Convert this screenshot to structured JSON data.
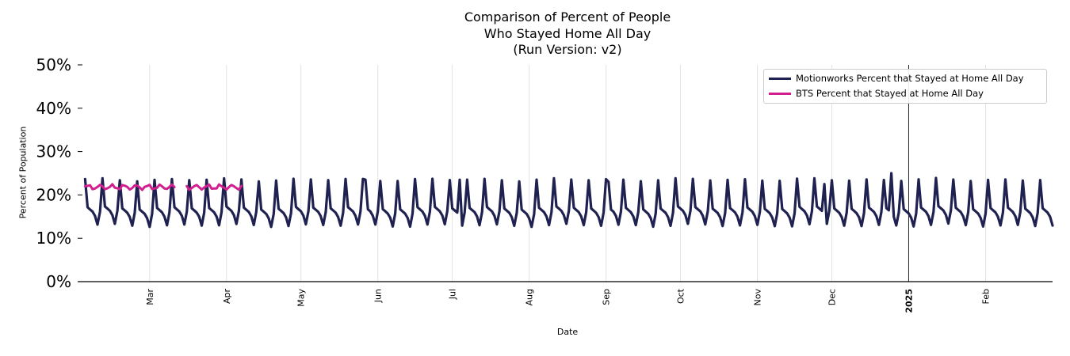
{
  "chart_data": {
    "type": "line",
    "title": [
      "Comparison of Percent of People",
      "Who Stayed Home All Day",
      "(Run Version: v2)"
    ],
    "xlabel": "Date",
    "ylabel": "Percent of Population",
    "ylim": [
      0,
      50
    ],
    "y_ticks": [
      0,
      10,
      20,
      30,
      40,
      50
    ],
    "y_tick_labels": [
      "0%",
      "10%",
      "20%",
      "30%",
      "40%",
      "50%"
    ],
    "x_range": [
      "2024-02-01",
      "2025-02-28"
    ],
    "x_ticks": [
      {
        "date": "2024-03-01",
        "label": "Mar",
        "bold": false
      },
      {
        "date": "2024-04-01",
        "label": "Apr",
        "bold": false
      },
      {
        "date": "2024-05-01",
        "label": "May",
        "bold": false
      },
      {
        "date": "2024-06-01",
        "label": "Jun",
        "bold": false
      },
      {
        "date": "2024-07-01",
        "label": "Jul",
        "bold": false
      },
      {
        "date": "2024-08-01",
        "label": "Aug",
        "bold": false
      },
      {
        "date": "2024-09-01",
        "label": "Sep",
        "bold": false
      },
      {
        "date": "2024-10-01",
        "label": "Oct",
        "bold": false
      },
      {
        "date": "2024-11-01",
        "label": "Nov",
        "bold": false
      },
      {
        "date": "2024-12-01",
        "label": "Dec",
        "bold": false
      },
      {
        "date": "2025-01-01",
        "label": "2025",
        "bold": true
      },
      {
        "date": "2025-02-01",
        "label": "Feb",
        "bold": false
      }
    ],
    "grid": true,
    "legend_position": "top-right",
    "series": [
      {
        "name": "Motionworks Percent that Stayed at Home All Day",
        "color": "#1f2150",
        "start": "2024-02-04",
        "end": "2025-02-28",
        "pattern": {
          "cycle_days": 7,
          "weekly_profile": [
            23.5,
            17.0,
            16.5,
            16.0,
            15.0,
            13.0,
            16.0
          ],
          "first_peak": "2024-02-04",
          "spike_dates": [
            {
              "date": "2024-05-27",
              "value": 23.5
            },
            {
              "date": "2024-07-04",
              "value": 23.5
            },
            {
              "date": "2024-09-02",
              "value": 23.0
            },
            {
              "date": "2024-11-28",
              "value": 22.5
            },
            {
              "date": "2024-12-25",
              "value": 25.0
            }
          ]
        }
      },
      {
        "name": "BTS Percent that Stayed at Home All Day",
        "color": "#d11f8f",
        "start": "2024-02-04",
        "end": "2024-04-07",
        "gap": [
          "2024-03-12",
          "2024-03-15"
        ],
        "mean": 21.8,
        "amplitude": 0.5
      }
    ]
  }
}
